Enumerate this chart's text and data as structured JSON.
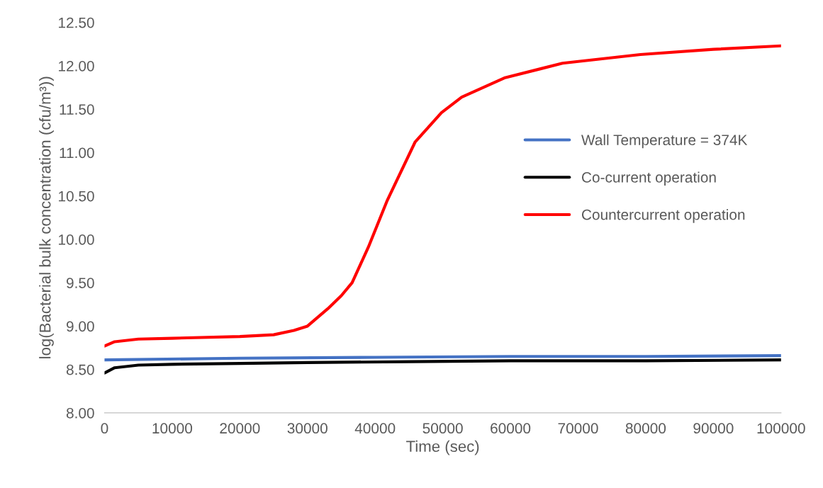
{
  "chart_data": {
    "type": "line",
    "xlabel": "Time (sec)",
    "ylabel": "log(Bacterial bulk concentration (cfu/m³))",
    "xlim": [
      0,
      100000
    ],
    "xticks": [
      0,
      10000,
      20000,
      30000,
      40000,
      50000,
      60000,
      70000,
      80000,
      90000,
      100000
    ],
    "ylim": [
      8.0,
      12.5
    ],
    "yticks": [
      {
        "value": 8.0,
        "label": "8.00"
      },
      {
        "value": 8.5,
        "label": "8.50"
      },
      {
        "value": 9.0,
        "label": "9.00"
      },
      {
        "value": 9.5,
        "label": "9.50"
      },
      {
        "value": 10.0,
        "label": "10.00"
      },
      {
        "value": 10.5,
        "label": "10.50"
      },
      {
        "value": 11.0,
        "label": "11.00"
      },
      {
        "value": 11.5,
        "label": "11.50"
      },
      {
        "value": 12.0,
        "label": "12.00"
      },
      {
        "value": 12.5,
        "label": "12.50"
      }
    ],
    "grid": false,
    "legend": "right",
    "marker": "none",
    "line_style": "solid",
    "series": [
      {
        "name": "Wall Temperature = 374K",
        "color": "#4472c4",
        "x": [
          0,
          20000,
          40000,
          60000,
          80000,
          100000
        ],
        "values": [
          8.61,
          8.63,
          8.64,
          8.65,
          8.65,
          8.66
        ]
      },
      {
        "name": "Co-current operation",
        "color": "#000000",
        "x": [
          0,
          1500,
          5000,
          10000,
          20000,
          30000,
          45000,
          60000,
          80000,
          100000
        ],
        "values": [
          8.46,
          8.52,
          8.55,
          8.56,
          8.57,
          8.58,
          8.59,
          8.6,
          8.6,
          8.61
        ]
      },
      {
        "name": "Countercurrent operation",
        "color": "#ff0000",
        "x": [
          0,
          1500,
          5000,
          10000,
          20000,
          25000,
          28000,
          30000,
          33000,
          35000,
          36600,
          39000,
          41800,
          45900,
          49800,
          52800,
          59100,
          67700,
          79200,
          90000,
          100000
        ],
        "values": [
          8.77,
          8.82,
          8.85,
          8.86,
          8.88,
          8.9,
          8.95,
          9.0,
          9.2,
          9.35,
          9.5,
          9.91,
          10.45,
          11.12,
          11.46,
          11.64,
          11.86,
          12.03,
          12.13,
          12.19,
          12.23
        ]
      }
    ]
  }
}
